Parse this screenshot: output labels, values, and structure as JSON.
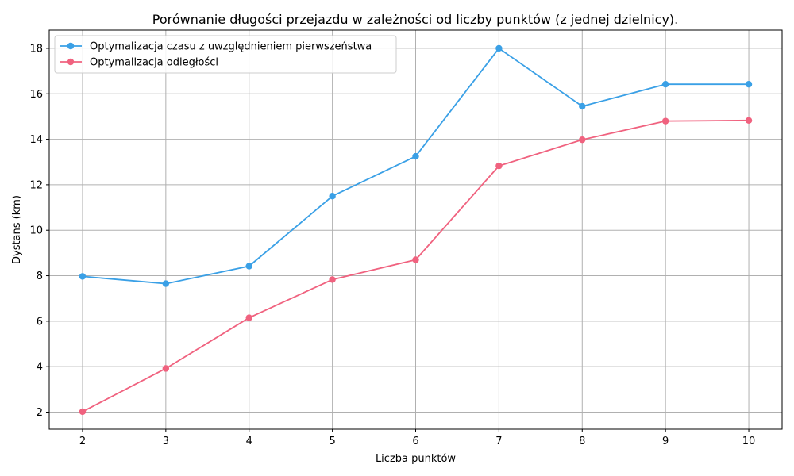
{
  "chart_data": {
    "type": "line",
    "title": "Porównanie długości przejazdu w zależności od liczby punktów (z jednej dzielnicy).",
    "xlabel": "Liczba punktów",
    "ylabel": "Dystans (km)",
    "x": [
      2,
      3,
      4,
      5,
      6,
      7,
      8,
      9,
      10
    ],
    "xlim": [
      1.6,
      10.4
    ],
    "ylim": [
      1.25,
      18.8
    ],
    "xticks": [
      2,
      3,
      4,
      5,
      6,
      7,
      8,
      9,
      10
    ],
    "yticks": [
      2,
      4,
      6,
      8,
      10,
      12,
      14,
      16,
      18
    ],
    "grid": true,
    "legend_position": "top-left",
    "series": [
      {
        "name": "Optymalizacja czasu z uwzględnieniem pierwszeństwa",
        "color": "#3aa0e6",
        "values": [
          7.97,
          7.65,
          8.42,
          11.5,
          13.25,
          18.0,
          15.45,
          16.42,
          16.42
        ]
      },
      {
        "name": "Optymalizacja odległości",
        "color": "#f0627f",
        "values": [
          2.02,
          3.92,
          6.15,
          7.83,
          8.7,
          12.83,
          13.98,
          14.8,
          14.83
        ]
      }
    ]
  }
}
